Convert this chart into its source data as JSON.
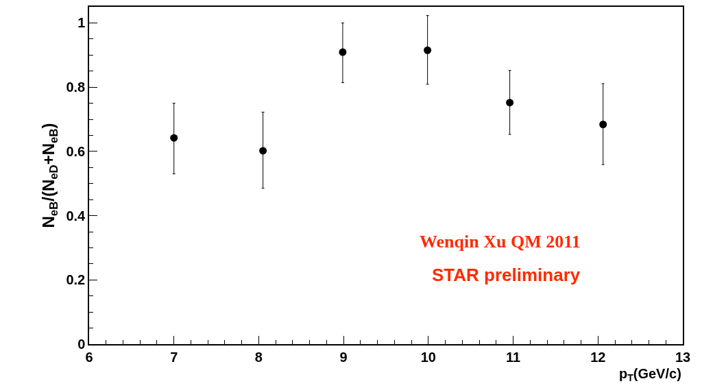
{
  "chart_data": {
    "type": "scatter",
    "xlabel": "p$_{T}$(GeV/c)",
    "ylabel": "N$_{eB}$/(N$_{eD}$+N$_{eB}$)",
    "x": [
      7.0,
      8.05,
      8.99,
      9.99,
      10.96,
      12.06
    ],
    "series": [
      {
        "color": "#000000",
        "values": [
          0.642,
          0.602,
          0.909,
          0.915,
          0.752,
          0.684
        ],
        "errors": [
          [
            0.53,
            0.75
          ],
          [
            0.485,
            0.722
          ],
          [
            0.814,
            1.0
          ],
          [
            0.809,
            1.023
          ],
          [
            0.653,
            0.852
          ],
          [
            0.559,
            0.811
          ]
        ]
      }
    ],
    "xlim": [
      6,
      13
    ],
    "xticks": [
      6,
      7,
      8,
      9,
      10,
      11,
      12,
      13
    ],
    "ylim": [
      0,
      1.05
    ],
    "yticks": [
      0,
      0.2,
      0.4,
      0.6,
      0.8,
      1
    ],
    "marker": "circle",
    "legend": false,
    "annotations": [
      "Wenqin Xu QM 2011",
      "STAR preliminary"
    ]
  }
}
